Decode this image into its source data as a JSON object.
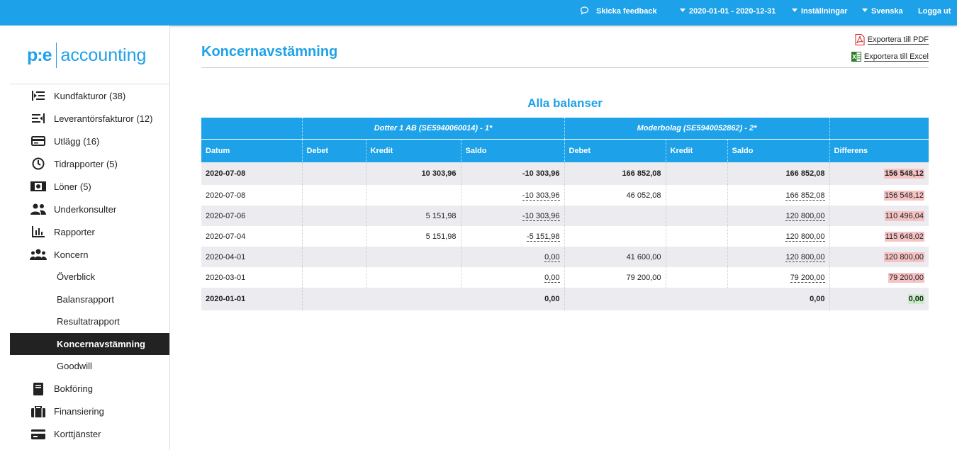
{
  "topbar": {
    "feedback": "Skicka feedback",
    "period": "2020-01-01 - 2020-12-31",
    "settings": "Inställningar",
    "language": "Svenska",
    "logout": "Logga ut"
  },
  "logo": {
    "mark": "p:e",
    "word": "accounting"
  },
  "sidebar": {
    "items": [
      {
        "label": "Kundfakturor (38)",
        "icon": "invoice-in-icon"
      },
      {
        "label": "Leverantörsfakturor (12)",
        "icon": "invoice-out-icon"
      },
      {
        "label": "Utlägg (16)",
        "icon": "credit-card-icon"
      },
      {
        "label": "Tidrapporter (5)",
        "icon": "clock-icon"
      },
      {
        "label": "Löner (5)",
        "icon": "banknote-icon"
      },
      {
        "label": "Underkonsulter",
        "icon": "users-icon"
      },
      {
        "label": "Rapporter",
        "icon": "bar-chart-icon"
      },
      {
        "label": "Koncern",
        "icon": "group-icon"
      }
    ],
    "sub_items": [
      "Överblick",
      "Balansrapport",
      "Resultatrapport",
      "Koncernavstämning",
      "Goodwill"
    ],
    "bottom_items": [
      {
        "label": "Bokföring",
        "icon": "book-icon"
      },
      {
        "label": "Finansiering",
        "icon": "briefcase-icon"
      },
      {
        "label": "Korttjänster",
        "icon": "card-icon"
      }
    ]
  },
  "page": {
    "title": "Koncernavstämning",
    "export_pdf": "Exportera till PDF",
    "export_excel": "Exportera till Excel",
    "section_title": "Alla balanser"
  },
  "table": {
    "group_headers": [
      "Dotter 1 AB (SE5940060014) - 1*",
      "Moderbolag (SE5940052862) - 2*"
    ],
    "columns": [
      "Datum",
      "Debet",
      "Kredit",
      "Saldo",
      "Debet",
      "Kredit",
      "Saldo",
      "Differens"
    ],
    "rows": [
      {
        "date": "2020-07-08",
        "d1": "",
        "k1": "10 303,96",
        "s1": "-10 303,96",
        "d2": "166 852,08",
        "k2": "",
        "s2": "166 852,08",
        "diff": "156 548,12"
      },
      {
        "date": "2020-07-08",
        "d1": "",
        "k1": "",
        "s1": "-10 303,96",
        "d2": "46 052,08",
        "k2": "",
        "s2": "166 852,08",
        "diff": "156 548,12"
      },
      {
        "date": "2020-07-06",
        "d1": "",
        "k1": "5 151,98",
        "s1": "-10 303,96",
        "d2": "",
        "k2": "",
        "s2": "120 800,00",
        "diff": "110 496,04"
      },
      {
        "date": "2020-07-04",
        "d1": "",
        "k1": "5 151,98",
        "s1": "-5 151,98",
        "d2": "",
        "k2": "",
        "s2": "120 800,00",
        "diff": "115 648,02"
      },
      {
        "date": "2020-04-01",
        "d1": "",
        "k1": "",
        "s1": "0,00",
        "d2": "41 600,00",
        "k2": "",
        "s2": "120 800,00",
        "diff": "120 800,00"
      },
      {
        "date": "2020-03-01",
        "d1": "",
        "k1": "",
        "s1": "0,00",
        "d2": "79 200,00",
        "k2": "",
        "s2": "79 200,00",
        "diff": "79 200,00"
      },
      {
        "date": "2020-01-01",
        "s1": "0,00",
        "s2": "0,00",
        "diff": "0,00"
      }
    ]
  },
  "colors": {
    "accent": "#1da1e8",
    "negative_bg": "#f5c3c3",
    "positive_bg": "#c8efc8"
  }
}
